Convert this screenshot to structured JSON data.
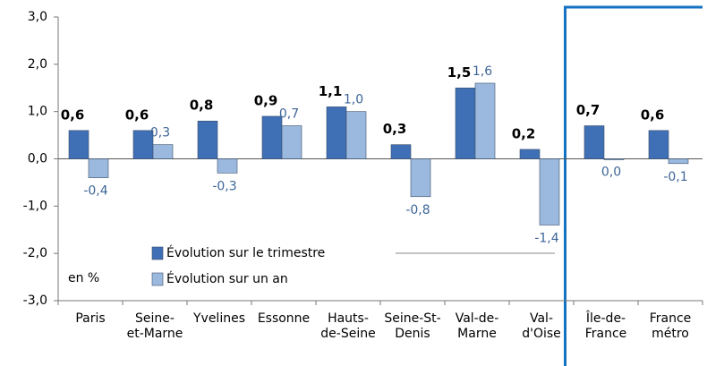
{
  "chart_data": {
    "type": "bar",
    "categories": [
      "Paris",
      "Seine-\net-Marne",
      "Yvelines",
      "Essonne",
      "Hauts-\nde-Seine",
      "Seine-St-\nDenis",
      "Val-de-\nMarne",
      "Val-\nd'Oise",
      "Île-de-\nFrance",
      "France\nmétro"
    ],
    "series": [
      {
        "name": "Évolution sur le trimestre",
        "color": "#3f6fb5",
        "values": [
          0.6,
          0.6,
          0.8,
          0.9,
          1.1,
          0.3,
          1.5,
          0.2,
          0.7,
          0.6
        ],
        "value_labels": [
          "0,6",
          "0,6",
          "0,8",
          "0,9",
          "1,1",
          "0,3",
          "1,5",
          "0,2",
          "0,7",
          "0,6"
        ]
      },
      {
        "name": "Évolution sur un an",
        "color": "#9bb9de",
        "values": [
          -0.4,
          0.3,
          -0.3,
          0.7,
          1.0,
          -0.8,
          1.6,
          -1.4,
          0.0,
          -0.1
        ],
        "value_labels": [
          "-0,4",
          "0,3",
          "-0,3",
          "0,7",
          "1,0",
          "-0,8",
          "1,6",
          "-1,4",
          "0,0",
          "-0,1"
        ]
      }
    ],
    "annotation": "en %",
    "ylim": [
      -3,
      3
    ],
    "yticks": [
      {
        "value": -3,
        "label": "-3,0"
      },
      {
        "value": -2,
        "label": "-2,0"
      },
      {
        "value": -1,
        "label": "-1,0"
      },
      {
        "value": 0,
        "label": "0,0"
      },
      {
        "value": 1,
        "label": "1,0"
      },
      {
        "value": 2,
        "label": "2,0"
      },
      {
        "value": 3,
        "label": "3,0"
      }
    ],
    "grid": false
  }
}
